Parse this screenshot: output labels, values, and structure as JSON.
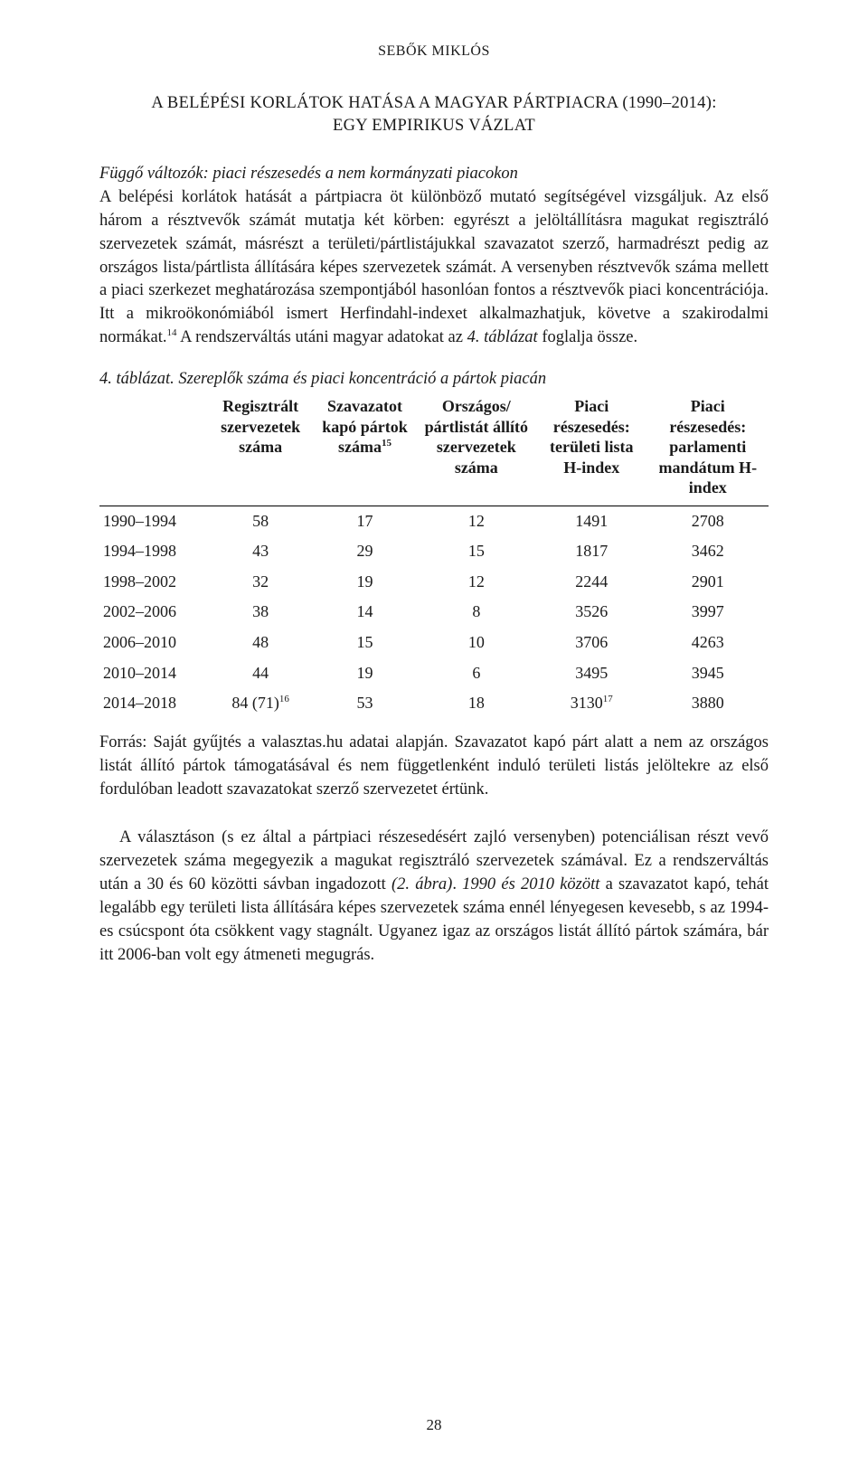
{
  "running_head": "SEBŐK MIKLÓS",
  "section_title_line1": "A BELÉPÉSI KORLÁTOK HATÁSA A MAGYAR PÁRTPIACRA (1990–2014):",
  "section_title_line2": "EGY EMPIRIKUS VÁZLAT",
  "para1_lead_italic": "Függő változók: piaci részesedés a nem kormányzati piacokon",
  "para1_rest_a": "A belépési korlátok hatását a pártpiacra öt különböző mutató segítségével vizsgáljuk. Az első három a résztvevők számát mutatja két körben: egyrészt a jelöltállításra magukat regisztráló szervezetek számát, másrészt a területi/pártlistájukkal szavazatot szerző, harmadrészt pedig az országos lista/pártlista állítására képes szervezetek számát. A versenyben résztvevők száma mellett a piaci szerkezet meghatározása szempontjából hasonlóan fontos a résztvevők piaci koncentrációja. Itt a mikroökonómiából ismert Herfindahl-indexet alkalmazhatjuk, követve a szakirodalmi normákat.",
  "para1_sup1": "14",
  "para1_rest_b": " A rendszerváltás utáni magyar adatokat az ",
  "para1_tableref": "4. táblázat",
  "para1_rest_c": " foglalja össze.",
  "table_caption_prefix": "4. táblázat.",
  "table_caption_rest": " Szereplők száma és piaci koncentráció a pártok piacán",
  "table": {
    "headers": [
      "",
      "Regisztrált szervezetek száma",
      "Szavazatot kapó pártok száma",
      "Országos/ pártlistát állító szervezetek száma",
      "Piaci részesedés: területi lista H-index",
      "Piaci részesedés: parlamenti mandátum H-index"
    ],
    "header_sup": "15",
    "rows": [
      [
        "1990–1994",
        "58",
        "17",
        "12",
        "1491",
        "2708"
      ],
      [
        "1994–1998",
        "43",
        "29",
        "15",
        "1817",
        "3462"
      ],
      [
        "1998–2002",
        "32",
        "19",
        "12",
        "2244",
        "2901"
      ],
      [
        "2002–2006",
        "38",
        "14",
        "8",
        "3526",
        "3997"
      ],
      [
        "2006–2010",
        "48",
        "15",
        "10",
        "3706",
        "4263"
      ],
      [
        "2010–2014",
        "44",
        "19",
        "6",
        "3495",
        "3945"
      ],
      [
        "2014–2018",
        "84 (71)",
        "53",
        "18",
        "3130",
        "3880"
      ]
    ],
    "last_row_sup1": "16",
    "last_row_sup2": "17"
  },
  "source_text": "Forrás: Saját gyűjtés a valasztas.hu adatai alapján. Szavazatot kapó párt alatt a nem az országos listát állító pártok támogatásával és nem függetlenként induló területi listás jelöltekre az első fordulóban leadott szavazatokat szerző szervezetet értünk.",
  "para2_a": "A választáson (s ez által a pártpiaci részesedésért zajló versenyben) potenciálisan részt vevő szervezetek száma megegyezik a magukat regisztráló szervezetek számával. Ez a rendszerváltás után a 30 és 60 közötti sávban ingadozott ",
  "para2_figref": "(2. ábra)",
  "para2_point": ". ",
  "para2_emph": "1990 és 2010 között",
  "para2_b": " a szavazatot kapó, tehát legalább egy területi lista állítására képes szervezetek száma ennél lényegesen kevesebb, s az 1994-es csúcspont óta csökkent vagy stagnált. Ugyanez igaz az országos listát állító pártok számára, bár itt 2006-ban volt egy átmeneti megugrás.",
  "page_number": "28",
  "colors": {
    "text": "#1a1a1a",
    "bg": "#ffffff",
    "rule": "#000000"
  },
  "fontsize_body_pt": 14,
  "fontsize_head_pt": 12
}
